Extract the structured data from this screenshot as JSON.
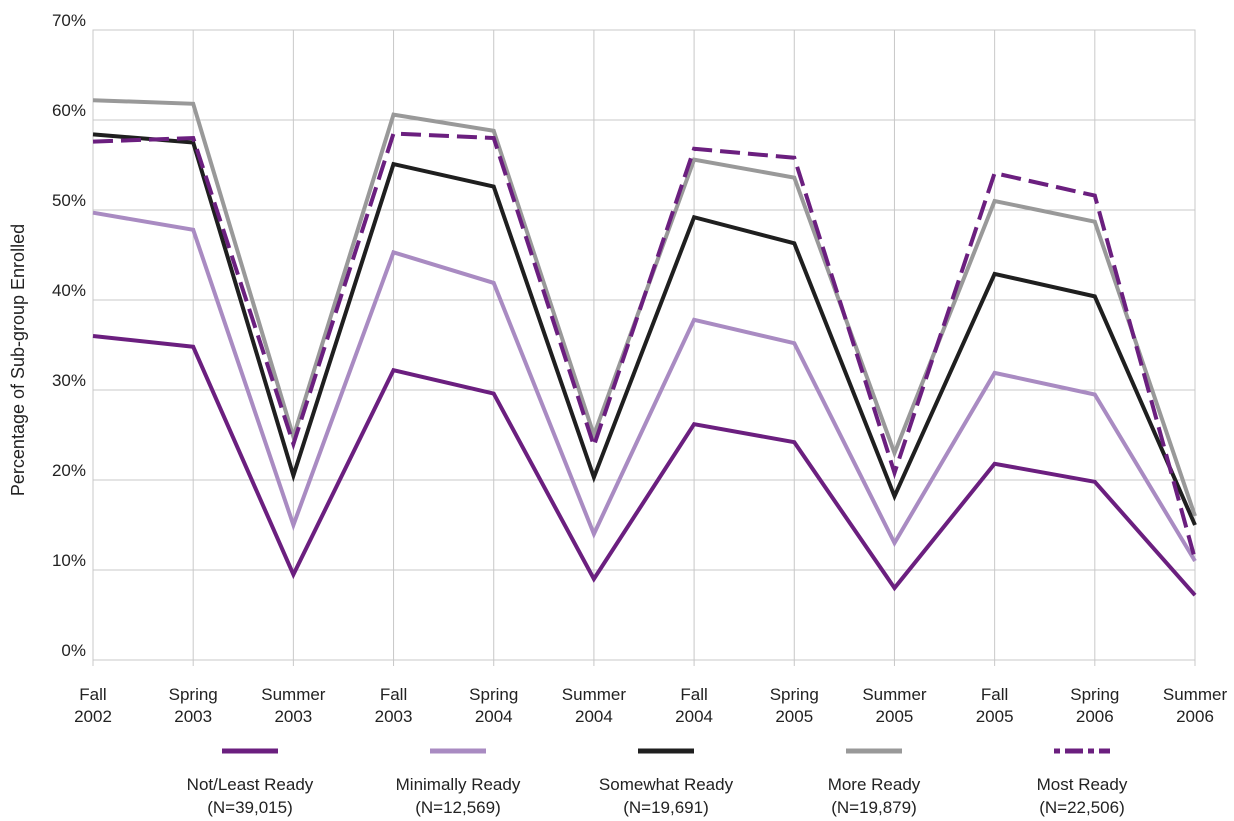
{
  "chart_data": {
    "type": "line",
    "title": "",
    "xlabel": "",
    "ylabel": "Percentage of Sub-group Enrolled",
    "ylim": [
      0,
      70
    ],
    "y_ticks": [
      "0%",
      "10%",
      "20%",
      "30%",
      "40%",
      "50%",
      "60%",
      "70%"
    ],
    "grid": true,
    "legend_position": "bottom",
    "categories": [
      [
        "Fall",
        "2002"
      ],
      [
        "Spring",
        "2003"
      ],
      [
        "Summer",
        "2003"
      ],
      [
        "Fall",
        "2003"
      ],
      [
        "Spring",
        "2004"
      ],
      [
        "Summer",
        "2004"
      ],
      [
        "Fall",
        "2004"
      ],
      [
        "Spring",
        "2005"
      ],
      [
        "Summer",
        "2005"
      ],
      [
        "Fall",
        "2005"
      ],
      [
        "Spring",
        "2006"
      ],
      [
        "Summer",
        "2006"
      ]
    ],
    "series": [
      {
        "name": "Not/Least Ready",
        "n_label": "(N=39,015)",
        "color": "#6b1f7f",
        "dash": false,
        "values": [
          36,
          34.8,
          9.5,
          32.2,
          29.6,
          9,
          26.2,
          24.2,
          8,
          21.8,
          19.8,
          7.2
        ]
      },
      {
        "name": "Minimally Ready",
        "n_label": "(N=12,569)",
        "color": "#a98bc2",
        "dash": false,
        "values": [
          49.7,
          47.8,
          15,
          45.3,
          41.9,
          14,
          37.8,
          35.2,
          13,
          31.9,
          29.5,
          11
        ]
      },
      {
        "name": "Somewhat Ready",
        "n_label": "(N=19,691)",
        "color": "#1f1f1f",
        "dash": false,
        "values": [
          58.4,
          57.5,
          20.5,
          55.1,
          52.6,
          20.3,
          49.2,
          46.3,
          18.2,
          42.9,
          40.4,
          15
        ]
      },
      {
        "name": "More Ready",
        "n_label": "(N=19,879)",
        "color": "#999999",
        "dash": false,
        "values": [
          62.2,
          61.8,
          24.8,
          60.6,
          58.8,
          25,
          55.6,
          53.6,
          23,
          51,
          48.7,
          16
        ]
      },
      {
        "name": "Most Ready",
        "n_label": "(N=22,506)",
        "color": "#6b1f7f",
        "dash": true,
        "values": [
          57.6,
          58,
          24,
          58.5,
          58,
          23.8,
          56.8,
          55.8,
          20.8,
          54.1,
          51.6,
          11.2
        ]
      }
    ]
  }
}
